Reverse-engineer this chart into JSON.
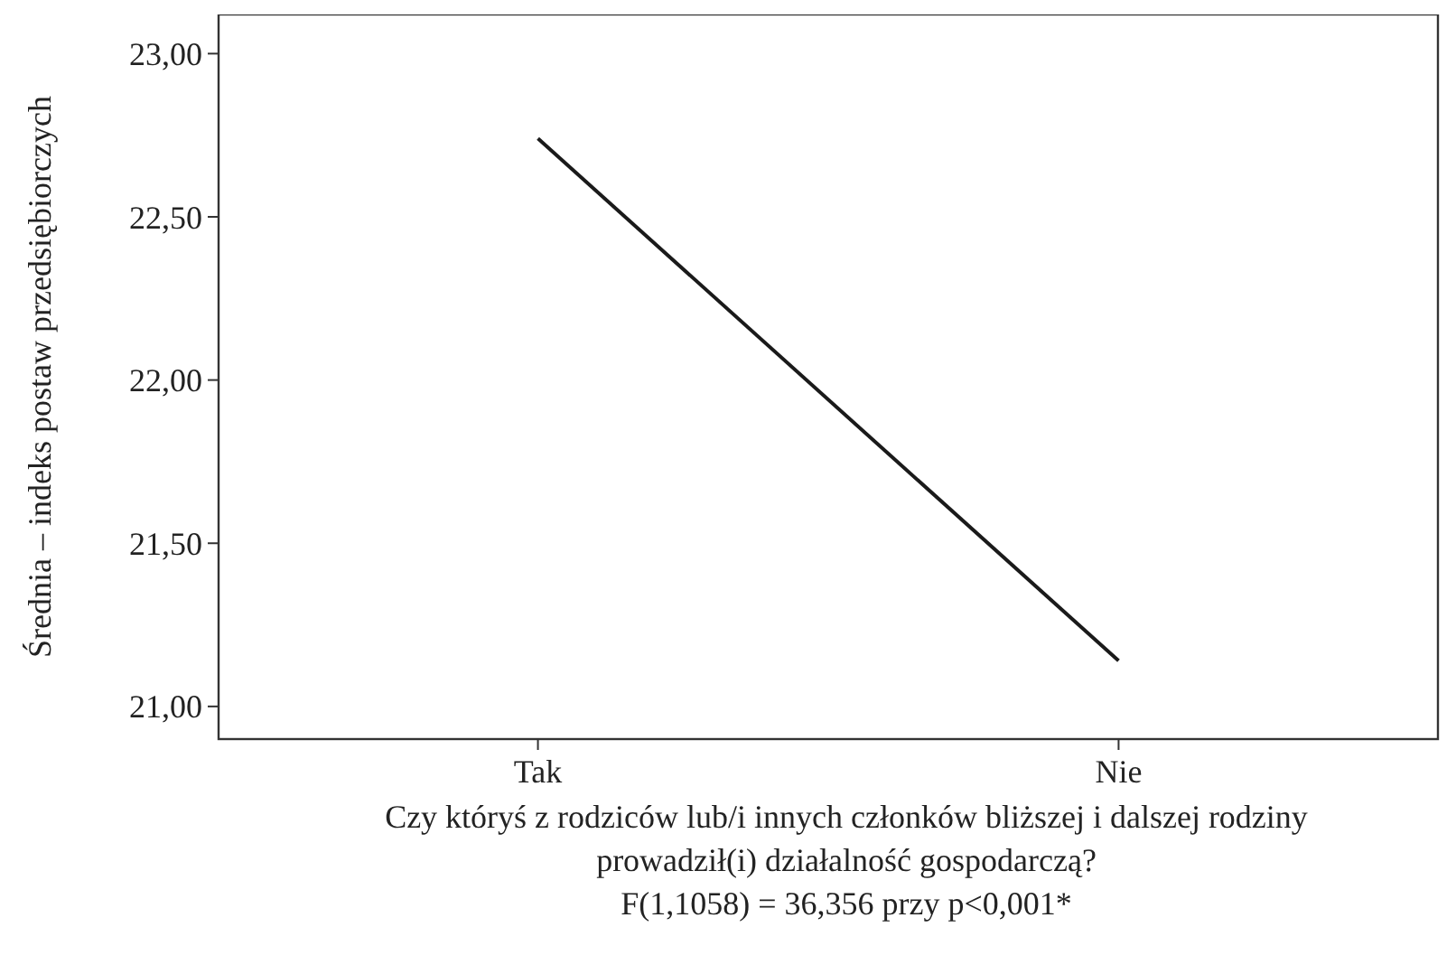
{
  "chart_data": {
    "type": "line",
    "ylabel": "Średnia – indeks postaw przedsiębiorczych",
    "xlabel": "Czy któryś z rodziców lub/i innych członków bliższej i dalszej rodziny prowadził(i) działalność gospodarczą?",
    "annotations": [
      "F(1,1058) = 36,356 przy p<0,001*"
    ],
    "categories": [
      "Tak",
      "Nie"
    ],
    "series": [
      {
        "color": "#1a1a1a",
        "values": [
          22.74,
          21.14
        ]
      }
    ],
    "ylim": [
      20.9,
      23.12
    ],
    "yticks": [
      {
        "value": 21,
        "label": "21,00"
      },
      {
        "value": 21.5,
        "label": "21,50"
      },
      {
        "value": 22,
        "label": "22,00"
      },
      {
        "value": 22.5,
        "label": "22,50"
      },
      {
        "value": 23,
        "label": "23,00"
      }
    ],
    "grid": false,
    "marker": "none",
    "line_style": "solid"
  }
}
